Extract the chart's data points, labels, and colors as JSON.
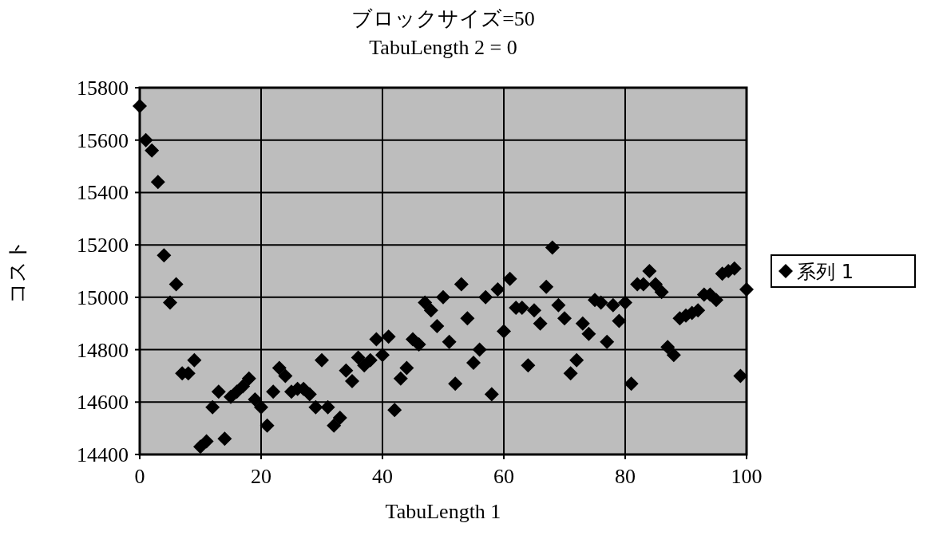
{
  "chart_data": {
    "type": "scatter",
    "title": "ブロックサイズ=50",
    "subtitle": "TabuLength 2 = 0",
    "xlabel": "TabuLength 1",
    "ylabel": "コスト",
    "xlim": [
      0,
      100
    ],
    "xticks": [
      0,
      20,
      40,
      60,
      80,
      100
    ],
    "ylim": [
      14400,
      15800
    ],
    "yticks": [
      14400,
      14600,
      14800,
      15000,
      15200,
      15400,
      15600,
      15800
    ],
    "grid": true,
    "legend": "right",
    "marker": "diamond",
    "x": [
      0,
      1,
      2,
      3,
      4,
      5,
      6,
      7,
      8,
      9,
      10,
      11,
      12,
      13,
      14,
      15,
      16,
      17,
      18,
      19,
      20,
      21,
      22,
      23,
      24,
      25,
      26,
      27,
      28,
      29,
      30,
      31,
      32,
      33,
      34,
      35,
      36,
      37,
      38,
      39,
      40,
      41,
      42,
      43,
      44,
      45,
      46,
      47,
      48,
      49,
      50,
      51,
      52,
      53,
      54,
      55,
      56,
      57,
      58,
      59,
      60,
      61,
      62,
      63,
      64,
      65,
      66,
      67,
      68,
      69,
      70,
      71,
      72,
      73,
      74,
      75,
      76,
      77,
      78,
      79,
      80,
      81,
      82,
      83,
      84,
      85,
      86,
      87,
      88,
      89,
      90,
      91,
      92,
      93,
      94,
      95,
      96,
      97,
      98,
      99,
      100
    ],
    "series": [
      {
        "name": "系列 1",
        "color": "#000000",
        "values": [
          15730,
          15600,
          15560,
          15440,
          15160,
          14980,
          15050,
          14710,
          14710,
          14760,
          14430,
          14450,
          14580,
          14640,
          14460,
          14620,
          14640,
          14660,
          14690,
          14610,
          14580,
          14510,
          14640,
          14730,
          14700,
          14640,
          14650,
          14650,
          14630,
          14580,
          14760,
          14580,
          14510,
          14540,
          14720,
          14680,
          14770,
          14740,
          14760,
          14840,
          14780,
          14850,
          14570,
          14690,
          14730,
          14840,
          14820,
          14980,
          14950,
          14890,
          15000,
          14830,
          14670,
          15050,
          14920,
          14750,
          14800,
          15000,
          14630,
          15030,
          14870,
          15070,
          14960,
          14960,
          14740,
          14950,
          14900,
          15040,
          15190,
          14970,
          14920,
          14710,
          14760,
          14900,
          14860,
          14990,
          14980,
          14830,
          14970,
          14910,
          14980,
          14670,
          15050,
          15050,
          15100,
          15050,
          15020,
          14810,
          14780,
          14920,
          14930,
          14940,
          14950,
          15010,
          15010,
          14990,
          15090,
          15100,
          15110,
          14700,
          15030
        ]
      }
    ]
  }
}
